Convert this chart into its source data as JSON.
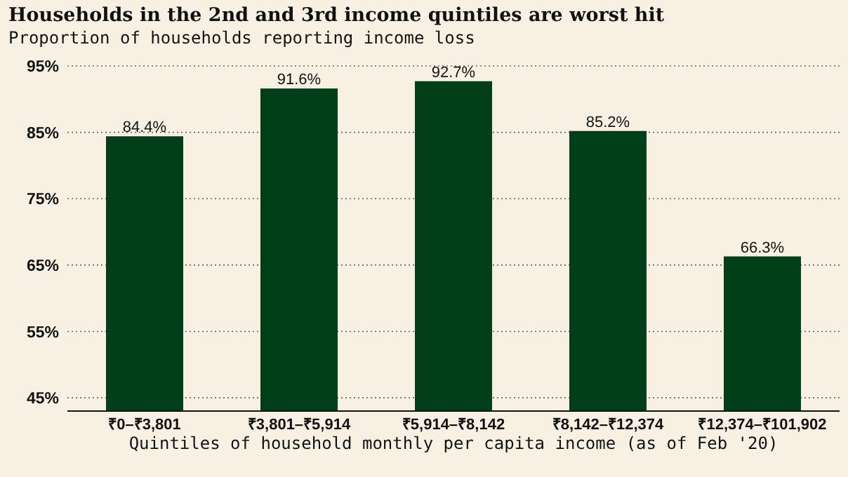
{
  "chart_data": {
    "type": "bar",
    "title": "Households in the 2nd and 3rd income quintiles are worst hit",
    "subtitle": "Proportion of households reporting income loss",
    "xlabel": "Quintiles of household monthly per capita income (as of Feb '20)",
    "categories": [
      "₹0–₹3,801",
      "₹3,801–₹5,914",
      "₹5,914–₹8,142",
      "₹8,142–₹12,374",
      "₹12,374–₹101,902"
    ],
    "values": [
      84.4,
      91.6,
      92.7,
      85.2,
      66.3
    ],
    "color": "#003f1a",
    "value_labels": [
      "84.4%",
      "91.6%",
      "92.7%",
      "85.2%",
      "66.3%"
    ],
    "ylim": [
      43,
      95
    ],
    "yticks": [
      {
        "value": 45,
        "label": "45%"
      },
      {
        "value": 55,
        "label": "55%"
      },
      {
        "value": 65,
        "label": "65%"
      },
      {
        "value": 75,
        "label": "75%"
      },
      {
        "value": 85,
        "label": "85%"
      },
      {
        "value": 95,
        "label": "95%"
      }
    ],
    "grid": "y"
  }
}
